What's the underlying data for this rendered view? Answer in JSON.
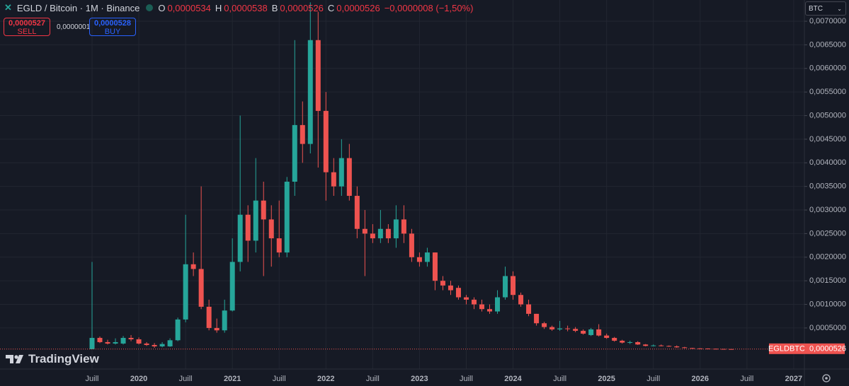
{
  "header": {
    "symbol": "EGLD / Bitcoin · 1M · Binance",
    "o_label": "O",
    "o": "0,0000534",
    "h_label": "H",
    "h": "0,0000538",
    "b_label": "B",
    "b": "0,0000526",
    "c_label": "C",
    "c": "0,0000526",
    "change": "−0,0000008 (−1,50%)"
  },
  "trade": {
    "sell_price": "0,0000527",
    "sell": "SELL",
    "spread": "0,0000001",
    "buy_price": "0,0000528",
    "buy": "BUY"
  },
  "currency": "BTC",
  "price_tag": {
    "symbol": "EGLDBTC",
    "price": "0,0000526"
  },
  "logo": "TradingView",
  "chart_data": {
    "type": "candlestick",
    "up_color": "#26a69a",
    "down_color": "#ef5350",
    "grid": true,
    "ylim": [
      -0.00034,
      0.00745
    ],
    "yticks": [
      {
        "value": 0.0005,
        "label": "0,0005000"
      },
      {
        "value": 0.001,
        "label": "0,0010000"
      },
      {
        "value": 0.0015,
        "label": "0,0015000"
      },
      {
        "value": 0.002,
        "label": "0,0020000"
      },
      {
        "value": 0.0025,
        "label": "0,0025000"
      },
      {
        "value": 0.003,
        "label": "0,0030000"
      },
      {
        "value": 0.0035,
        "label": "0,0035000"
      },
      {
        "value": 0.004,
        "label": "0,0040000"
      },
      {
        "value": 0.0045,
        "label": "0,0045000"
      },
      {
        "value": 0.005,
        "label": "0,0050000"
      },
      {
        "value": 0.0055,
        "label": "0,0055000"
      },
      {
        "value": 0.006,
        "label": "0,0060000"
      },
      {
        "value": 0.0065,
        "label": "0,0065000"
      },
      {
        "value": 0.007,
        "label": "0,0070000"
      }
    ],
    "categories": [
      "Juill",
      null,
      null,
      null,
      null,
      null,
      "2020",
      null,
      null,
      null,
      null,
      null,
      "Juill",
      null,
      null,
      null,
      null,
      null,
      "2021",
      null,
      null,
      null,
      null,
      null,
      "Juill",
      null,
      null,
      null,
      null,
      null,
      "2022",
      null,
      null,
      null,
      null,
      null,
      "Juill",
      null,
      null,
      null,
      null,
      null,
      "2023",
      null,
      null,
      null,
      null,
      null,
      "Juill",
      null,
      null,
      null,
      null,
      null,
      "2024",
      null,
      null,
      null,
      null,
      null,
      "Juill",
      null,
      null,
      null,
      null,
      null,
      "2025",
      null,
      null,
      null,
      null,
      null,
      "Juill",
      null,
      null,
      null,
      null,
      null,
      "2026",
      null,
      null,
      null,
      null,
      null,
      "Juill",
      null,
      null,
      null,
      null,
      null,
      "2027"
    ],
    "open": [
      5e-05,
      0.00029,
      0.0002,
      0.00017,
      0.00017,
      0.00029,
      0.00026,
      0.00017,
      0.00014,
      0.00011,
      0.00011,
      0.00024,
      0.00068,
      0.00185,
      0.00175,
      0.00095,
      0.0005,
      0.00045,
      0.00087,
      0.0019,
      0.0029,
      0.00235,
      0.0032,
      0.0028,
      0.0024,
      0.0021,
      0.0036,
      0.0048,
      0.0044,
      0.0066,
      0.0051,
      0.0038,
      0.0035,
      0.0041,
      0.0033,
      0.0026,
      0.0025,
      0.0024,
      0.0026,
      0.0024,
      0.0028,
      0.0025,
      0.002,
      0.0019,
      0.0021,
      0.0015,
      0.0014,
      0.00135,
      0.00115,
      0.0011,
      0.001,
      0.0009,
      0.00085,
      0.00115,
      0.0016,
      0.0012,
      0.001,
      0.0008,
      0.0006,
      0.00052,
      0.00047,
      0.00049,
      0.00048,
      0.00044,
      0.00035,
      0.00047,
      0.00034,
      0.00029,
      0.00023,
      0.00019,
      0.0002,
      0.00015,
      0.00012,
      0.00013,
      0.00012,
      0.00011,
      9e-05,
      7.5e-05,
      6.8e-05,
      6.5e-05,
      6e-05,
      5.6e-05,
      5.34e-05,
      null,
      null,
      null,
      null,
      null,
      null,
      null,
      null
    ],
    "high": [
      0.0019,
      0.00032,
      0.00025,
      0.00028,
      0.00033,
      0.00035,
      0.0003,
      0.0002,
      0.00018,
      0.0002,
      0.00028,
      0.00072,
      0.0029,
      0.0021,
      0.0035,
      0.0011,
      0.0007,
      0.0011,
      0.0024,
      0.005,
      0.0031,
      0.0041,
      0.0036,
      0.0031,
      0.0032,
      0.0037,
      0.0066,
      0.0053,
      0.0074,
      0.0072,
      0.0055,
      0.0041,
      0.0045,
      0.0044,
      0.0035,
      0.003,
      0.0027,
      0.003,
      0.0027,
      0.0031,
      0.0031,
      0.0026,
      0.0021,
      0.0022,
      0.0021,
      0.0016,
      0.0015,
      0.0014,
      0.0012,
      0.00115,
      0.0011,
      0.001,
      0.0013,
      0.0018,
      0.0017,
      0.00125,
      0.0011,
      0.0008,
      0.00063,
      0.00055,
      0.00065,
      0.00055,
      0.00052,
      0.00047,
      0.0005,
      0.00058,
      0.00038,
      0.00031,
      0.00025,
      0.00023,
      0.00022,
      0.00016,
      0.00015,
      0.00015,
      0.00013,
      0.00013,
      0.0001,
      8e-05,
      7.2e-05,
      6.8e-05,
      6.3e-05,
      5.8e-05,
      5.38e-05,
      null,
      null,
      null,
      null,
      null,
      null,
      null,
      null
    ],
    "low": [
      5e-05,
      0.00018,
      0.00015,
      0.00015,
      0.00015,
      0.00022,
      0.00015,
      0.00012,
      8e-05,
      9e-05,
      0.0001,
      0.00022,
      0.00062,
      0.0016,
      0.0009,
      0.00045,
      0.0004,
      0.0004,
      0.00085,
      0.0017,
      0.0019,
      0.0021,
      0.0016,
      0.0018,
      0.002,
      0.002,
      0.0033,
      0.004,
      0.0042,
      0.0039,
      0.0032,
      0.0033,
      0.0033,
      0.0032,
      0.0024,
      0.0016,
      0.0023,
      0.0023,
      0.0023,
      0.0022,
      0.0023,
      0.0019,
      0.0018,
      0.0018,
      0.0013,
      0.0013,
      0.0012,
      0.0011,
      0.001,
      0.0009,
      0.00085,
      0.0008,
      0.0008,
      0.0011,
      0.0011,
      0.00095,
      0.00075,
      0.00055,
      0.00048,
      0.00044,
      0.00044,
      0.00043,
      0.00041,
      0.00036,
      0.00033,
      0.00032,
      0.00027,
      0.00021,
      0.00017,
      0.00016,
      0.00014,
      0.00011,
      0.00011,
      0.00011,
      0.0001,
      8e-05,
      7e-05,
      6.2e-05,
      6e-05,
      5.6e-05,
      5.3e-05,
      5.2e-05,
      5.26e-05,
      null,
      null,
      null,
      null,
      null,
      null,
      null,
      null
    ],
    "close": [
      0.00029,
      0.0002,
      0.00017,
      0.0002,
      0.00029,
      0.00026,
      0.00017,
      0.00014,
      0.00011,
      0.00016,
      0.00024,
      0.00068,
      0.00185,
      0.00175,
      0.00095,
      0.0005,
      0.00045,
      0.00087,
      0.0019,
      0.0029,
      0.00235,
      0.0032,
      0.0028,
      0.0024,
      0.0021,
      0.0036,
      0.0048,
      0.0044,
      0.0066,
      0.0051,
      0.0038,
      0.0035,
      0.0041,
      0.0033,
      0.0026,
      0.0025,
      0.0024,
      0.0026,
      0.0024,
      0.0028,
      0.0025,
      0.002,
      0.0019,
      0.0021,
      0.0015,
      0.0014,
      0.0013,
      0.00115,
      0.0011,
      0.001,
      0.0009,
      0.00085,
      0.00115,
      0.0016,
      0.0012,
      0.001,
      0.0008,
      0.0006,
      0.00052,
      0.00047,
      0.00049,
      0.00048,
      0.00044,
      0.00038,
      0.00047,
      0.00034,
      0.00029,
      0.00023,
      0.00019,
      0.0002,
      0.00015,
      0.00012,
      0.00013,
      0.00012,
      0.00011,
      9e-05,
      7.5e-05,
      6.8e-05,
      6.5e-05,
      6e-05,
      5.6e-05,
      5.34e-05,
      5.26e-05,
      null,
      null,
      null,
      null,
      null,
      null,
      null,
      null
    ]
  }
}
